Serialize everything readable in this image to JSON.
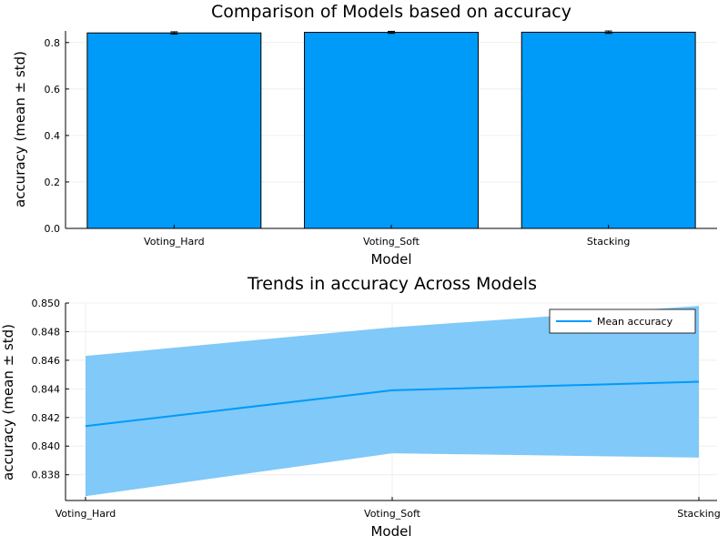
{
  "chart_data": [
    {
      "type": "bar",
      "title": "Comparison of Models based on accuracy",
      "xlabel": "Model",
      "ylabel": "accuracy (mean ± std)",
      "categories": [
        "Voting_Hard",
        "Voting_Soft",
        "Stacking"
      ],
      "values": [
        0.8414,
        0.8439,
        0.8445
      ],
      "errors": [
        0.0049,
        0.0044,
        0.0053
      ],
      "ylim": [
        0,
        0.85
      ],
      "yticks": [
        "0.0",
        "0.2",
        "0.4",
        "0.6",
        "0.8"
      ],
      "grid": true,
      "color": "#009af9"
    },
    {
      "type": "line",
      "title": "Trends in accuracy Across Models",
      "xlabel": "Model",
      "ylabel": "accuracy (mean ± std)",
      "categories": [
        "Voting_Hard",
        "Voting_Soft",
        "Stacking"
      ],
      "values": [
        0.8414,
        0.8439,
        0.8445
      ],
      "lower": [
        0.8365,
        0.8395,
        0.8392
      ],
      "upper": [
        0.8463,
        0.8483,
        0.8498
      ],
      "ylim": [
        0.8362,
        0.85
      ],
      "yticks": [
        "0.838",
        "0.840",
        "0.842",
        "0.844",
        "0.846",
        "0.848",
        "0.850"
      ],
      "grid": true,
      "legend": {
        "label": "Mean accuracy",
        "position": "top-right"
      },
      "color": "#009af9",
      "band_color": "#80c9f8"
    }
  ]
}
